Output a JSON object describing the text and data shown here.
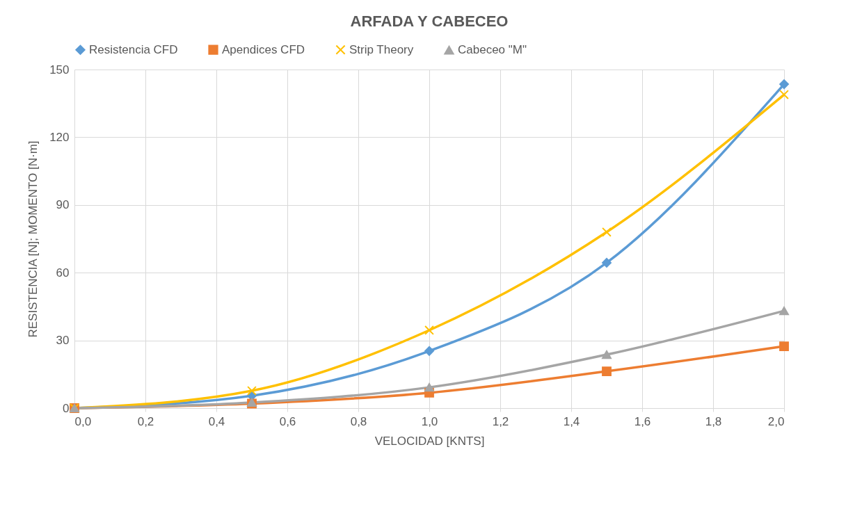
{
  "chart_data": {
    "type": "line",
    "title": "ARFADA Y CABECEO",
    "xlabel": "VELOCIDAD [KNTS]",
    "ylabel": "RESISTENCIA [N]; MOMENTO [N·m]",
    "x": [
      0,
      0.5,
      1.0,
      1.5,
      2.0
    ],
    "xlim": [
      0,
      2
    ],
    "xticks": [
      {
        "value": 0,
        "label": "0,0"
      },
      {
        "value": 0.2,
        "label": "0,2"
      },
      {
        "value": 0.4,
        "label": "0,4"
      },
      {
        "value": 0.6,
        "label": "0,6"
      },
      {
        "value": 0.8,
        "label": "0,8"
      },
      {
        "value": 1.0,
        "label": "1,0"
      },
      {
        "value": 1.2,
        "label": "1,2"
      },
      {
        "value": 1.4,
        "label": "1,4"
      },
      {
        "value": 1.6,
        "label": "1,6"
      },
      {
        "value": 1.8,
        "label": "1,8"
      },
      {
        "value": 2.0,
        "label": "2,0"
      }
    ],
    "ylim": [
      0,
      150
    ],
    "yticks": [
      0,
      30,
      60,
      90,
      120,
      150
    ],
    "grid": true,
    "legend": "top",
    "line_style": "solid",
    "series": [
      {
        "name": "Resistencia CFD",
        "color": "#5b9bd5",
        "marker": "diamond",
        "values": [
          0,
          5.5,
          25.3,
          64.4,
          143.5
        ]
      },
      {
        "name": "Apendices CFD",
        "color": "#ed7d31",
        "marker": "square",
        "values": [
          0,
          2,
          6.8,
          16.3,
          27.4
        ]
      },
      {
        "name": "Strip Theory",
        "color": "#ffc000",
        "marker": "cross",
        "values": [
          0,
          7.7,
          34.5,
          78,
          138.9
        ]
      },
      {
        "name": "Cabeceo \"M\"",
        "color": "#a5a5a5",
        "marker": "triangle",
        "values": [
          0,
          2.5,
          9.2,
          23.7,
          43.1
        ]
      }
    ]
  }
}
